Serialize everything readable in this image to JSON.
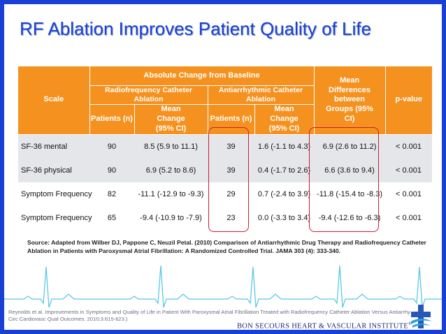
{
  "slide": {
    "title": "RF Ablation Improves Patient Quality of Life",
    "border_color": "#1a3fd6",
    "accent_color": "#f5911e",
    "highlight_color": "#c81e3a"
  },
  "table": {
    "header": {
      "scale": "Scale",
      "absolute_change": "Absolute Change from Baseline",
      "rf_group": "Radiofrequency Catheter Ablation",
      "aad_group": "Antiarrhythmic Catheter Ablation",
      "mean_diff": "Mean Differences between Groups (95% CI)",
      "p_value": "p-value",
      "patients": "Patients (n)",
      "mean_change": "Mean Change (95% CI)"
    },
    "rows": [
      {
        "scale": "SF-36 mental",
        "rf_n": "90",
        "rf_change": "8.5 (5.9 to 11.1)",
        "aad_n": "39",
        "aad_change": "1.6 (-1.1 to 4.3)",
        "diff": "6.9 (2.6 to 11.2)",
        "p": "< 0.001"
      },
      {
        "scale": "SF-36 physical",
        "rf_n": "90",
        "rf_change": "6.9 (5.2 to 8.6)",
        "aad_n": "39",
        "aad_change": "0.4 (-1.7 to 2.6)",
        "diff": "6.6 (3.6 to 9.4)",
        "p": "< 0.001"
      },
      {
        "scale": "Symptom Frequency",
        "rf_n": "82",
        "rf_change": "-11.1 (-12.9 to -9.3)",
        "aad_n": "29",
        "aad_change": "0.7 (-2.4 to 3.9)",
        "diff": "-11.8 (-15.4 to -8.3)",
        "p": "< 0.001"
      },
      {
        "scale": "Symptom Frequency",
        "rf_n": "65",
        "rf_change": "-9.4 (-10.9 to -7.9)",
        "aad_n": "23",
        "aad_change": "0.0 (-3.3 to 3.4)",
        "diff": "-9.4 (-12.6 to -6.3)",
        "p": "< 0.001"
      }
    ]
  },
  "source_note": "Source: Adapted from Wilber DJ, Pappone C, Neuzil Petal. (2010) Comparison of Antiarrhythmic Drug Therapy and Radiofrequency Catheter Ablation in Patients with Paroxysmal Atrial Fibrillation: A Randomized Controlled Trial. JAMA 303 (4): 333-340.",
  "footer": {
    "reference_line1": "Reynolds et al. Improvements in Symptoms and Quality of Life in Patient With Paroxysmal Atrial Fibrillation Treated with Radiofrequency Catheter Ablation Versus Antiarrhythmic",
    "reference_line2": "Circ Cardiovasc Qual Outcomes. 2010;3:615-623.)",
    "institute": "BON SECOURS HEART & VASCULAR INSTITUTE",
    "institute_mark": "®"
  }
}
